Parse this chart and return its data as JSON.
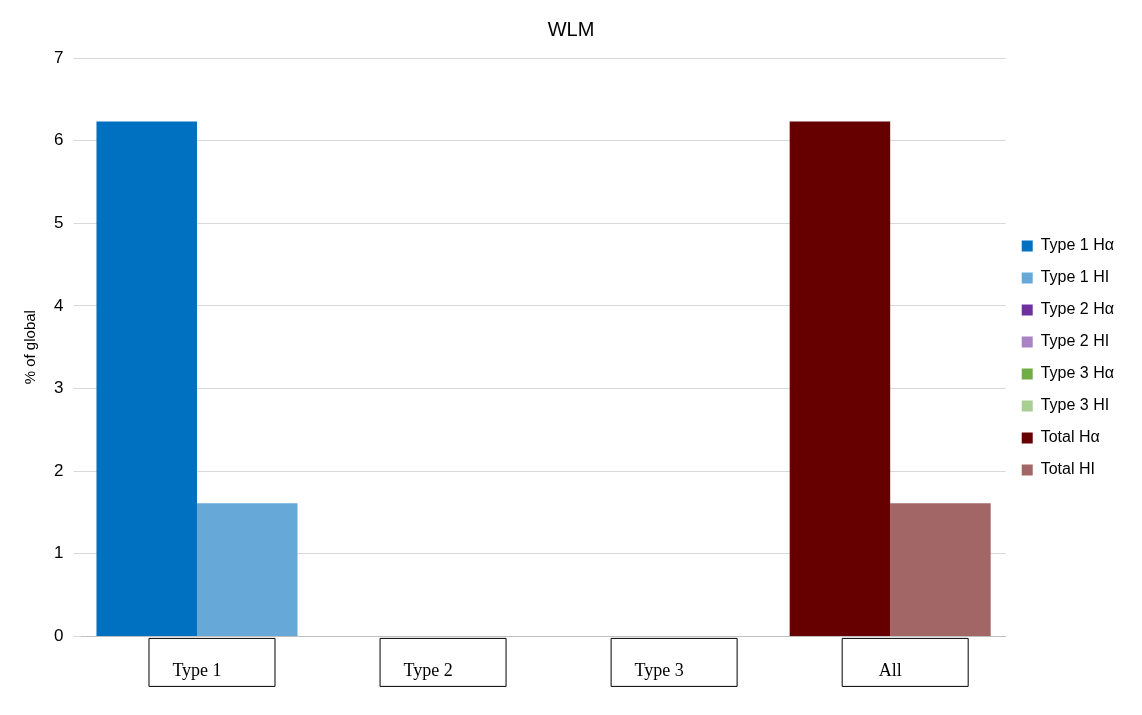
{
  "chart_data": {
    "type": "bar",
    "title": "WLM",
    "ylabel": "% of global",
    "categories": [
      "Type 1",
      "Type 2",
      "Type 3",
      "All"
    ],
    "series": [
      {
        "name": "Type 1 Hα",
        "color": "#0070c0",
        "values": [
          6.23,
          null,
          null,
          null
        ]
      },
      {
        "name": "Type 1 HI",
        "color": "#66a9d9",
        "values": [
          1.61,
          null,
          null,
          null
        ]
      },
      {
        "name": "Type 2 Hα",
        "color": "#7030a0",
        "values": [
          null,
          null,
          null,
          null
        ]
      },
      {
        "name": "Type 2 HI",
        "color": "#a983c6",
        "values": [
          null,
          null,
          null,
          null
        ]
      },
      {
        "name": "Type 3 Hα",
        "color": "#70ad47",
        "values": [
          null,
          null,
          null,
          null
        ]
      },
      {
        "name": "Type 3 HI",
        "color": "#a9ce91",
        "values": [
          null,
          null,
          null,
          null
        ]
      },
      {
        "name": "Total Hα",
        "color": "#660000",
        "values": [
          null,
          null,
          null,
          6.23
        ]
      },
      {
        "name": "Total HI",
        "color": "#a36666",
        "values": [
          null,
          null,
          null,
          1.61
        ]
      }
    ],
    "ylim": [
      0,
      7
    ],
    "yticks": [
      0,
      1,
      2,
      3,
      4,
      5,
      6,
      7
    ],
    "grid": "y",
    "legend": "right"
  }
}
